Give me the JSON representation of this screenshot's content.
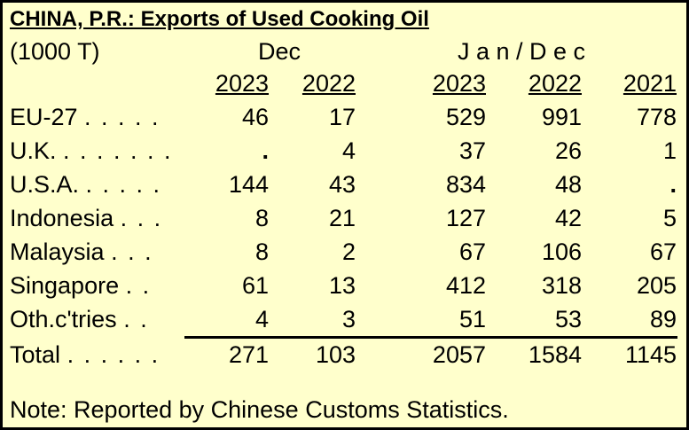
{
  "title": "CHINA, P.R.:  Exports of Used Cooking Oil",
  "unit": "(1000 T)",
  "group_dec": "Dec",
  "group_jandec": "J a n / D e c",
  "columns": [
    "2023",
    "2022",
    "2023",
    "2022",
    "2021"
  ],
  "rows": [
    {
      "label": "EU-27",
      "dots": ". . . . .",
      "values": [
        "46",
        "17",
        "529",
        "991",
        "778"
      ]
    },
    {
      "label": "U.K.",
      "dots": ". . . . . . .",
      "values": [
        ".",
        "4",
        "37",
        "26",
        "1"
      ]
    },
    {
      "label": "U.S.A.",
      "dots": ". . . . .",
      "values": [
        "144",
        "43",
        "834",
        "48",
        "."
      ]
    },
    {
      "label": "Indonesia",
      "dots": ". . .",
      "values": [
        "8",
        "21",
        "127",
        "42",
        "5"
      ]
    },
    {
      "label": "Malaysia",
      "dots": ". . .",
      "values": [
        "8",
        "2",
        "67",
        "106",
        "67"
      ]
    },
    {
      "label": "Singapore",
      "dots": ". .",
      "values": [
        "61",
        "13",
        "412",
        "318",
        "205"
      ]
    },
    {
      "label": "Oth.c'tries",
      "dots": ". .",
      "values": [
        "4",
        "3",
        "51",
        "53",
        "89"
      ]
    }
  ],
  "total": {
    "label": "Total",
    "dots": ". . . . . .",
    "values": [
      "271",
      "103",
      "2057",
      "1584",
      "1145"
    ]
  },
  "note": "Note:  Reported by Chinese Customs Statistics.",
  "chart_data": {
    "type": "table",
    "title": "CHINA, P.R.:  Exports of Used Cooking Oil",
    "unit": "(1000 T)",
    "column_groups": [
      {
        "name": "Dec",
        "columns": [
          "2023",
          "2022"
        ]
      },
      {
        "name": "Jan/Dec",
        "columns": [
          "2023",
          "2022",
          "2021"
        ]
      }
    ],
    "row_labels": [
      "EU-27",
      "U.K.",
      "U.S.A.",
      "Indonesia",
      "Malaysia",
      "Singapore",
      "Oth.c'tries",
      "Total"
    ],
    "values": [
      [
        46,
        17,
        529,
        991,
        778
      ],
      [
        null,
        4,
        37,
        26,
        1
      ],
      [
        144,
        43,
        834,
        48,
        null
      ],
      [
        8,
        21,
        127,
        42,
        5
      ],
      [
        8,
        2,
        67,
        106,
        67
      ],
      [
        61,
        13,
        412,
        318,
        205
      ],
      [
        4,
        3,
        51,
        53,
        89
      ],
      [
        271,
        103,
        2057,
        1584,
        1145
      ]
    ],
    "colors": {
      "background": "#ffffcc",
      "text": "#000000"
    }
  }
}
